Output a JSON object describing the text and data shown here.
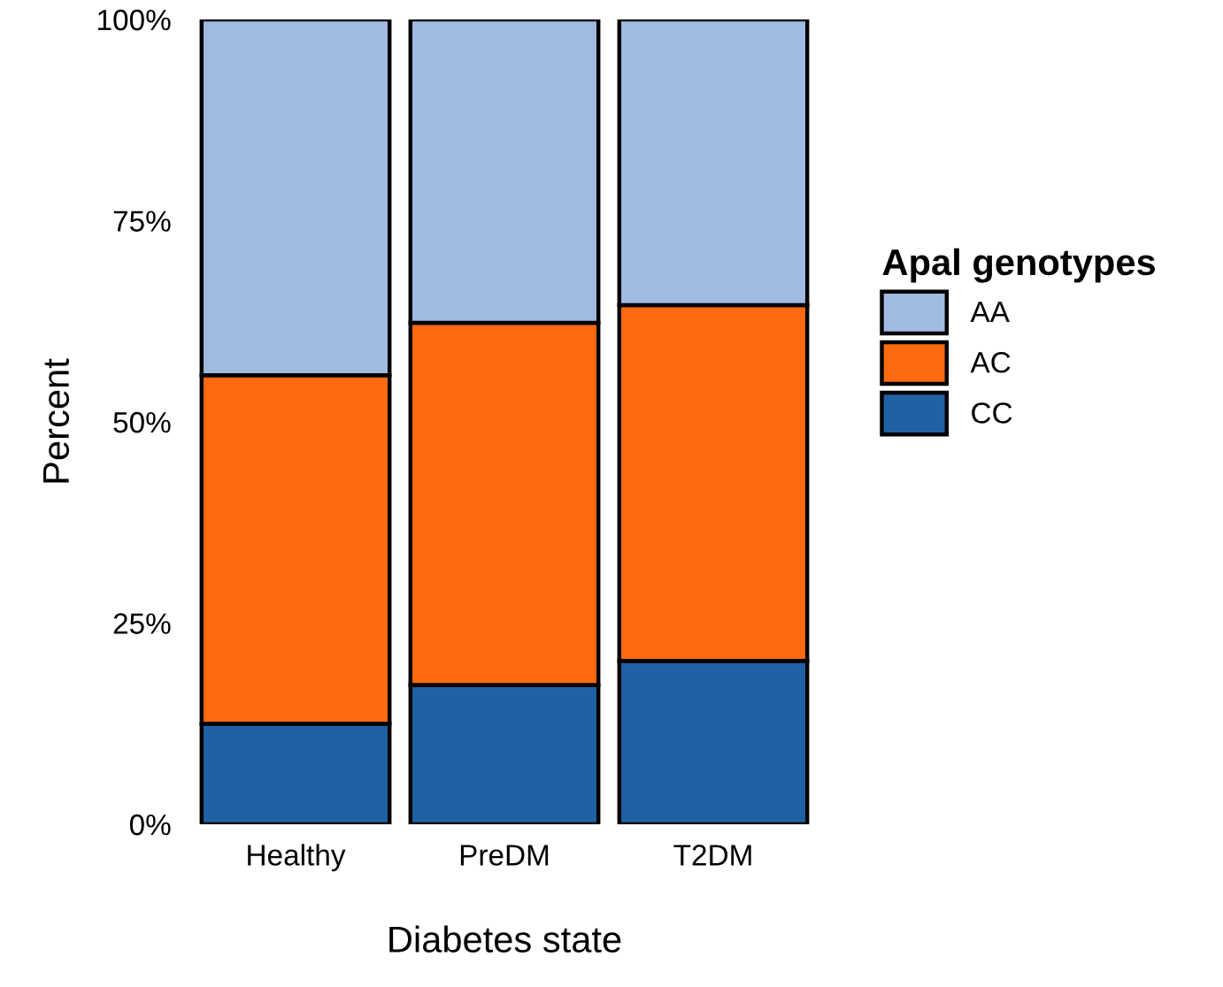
{
  "chart_data": {
    "type": "bar",
    "stacked": true,
    "xlabel": "Diabetes state",
    "ylabel": "Percent",
    "legend_title": "Apal genotypes",
    "legend": "right",
    "categories": [
      "Healthy",
      "PreDM",
      "T2DM"
    ],
    "series": [
      {
        "name": "CC",
        "color": "#1f62a4",
        "values": [
          12.5,
          17.3,
          20.3
        ]
      },
      {
        "name": "AC",
        "color": "#fd6a10",
        "values": [
          43.3,
          45.0,
          44.2
        ]
      },
      {
        "name": "AA",
        "color": "#a0bae2",
        "values": [
          44.2,
          37.7,
          35.5
        ]
      }
    ],
    "ylim": [
      0,
      100
    ],
    "yticks": [
      {
        "value": 0,
        "label": "0%"
      },
      {
        "value": 25,
        "label": "25%"
      },
      {
        "value": 50,
        "label": "50%"
      },
      {
        "value": 75,
        "label": "75%"
      },
      {
        "value": 100,
        "label": "100%"
      }
    ],
    "grid": false
  }
}
